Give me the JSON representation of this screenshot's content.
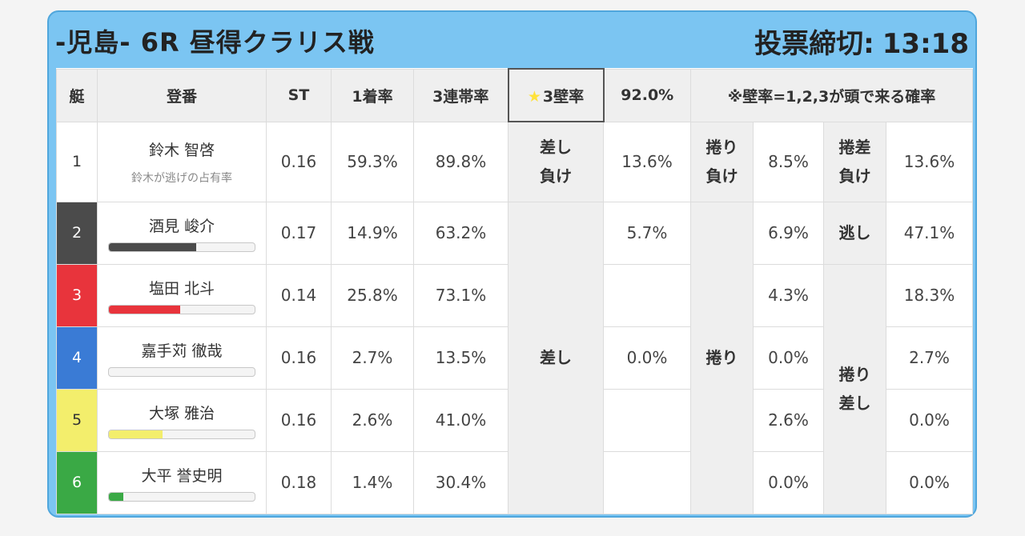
{
  "header": {
    "title": "-児島- 6R 昼得クラリス戦",
    "deadline_label": "投票締切:",
    "deadline_time": "13:18"
  },
  "columns": {
    "boat": "艇",
    "name": "登番",
    "st": "ST",
    "first_rate": "1着率",
    "trio_rate": "3連帯率",
    "wall_star": "★",
    "wall_label": "3壁率",
    "wall_pct": "92.0%",
    "note": "※壁率=1,2,3が頭で来る確率"
  },
  "rows": [
    {
      "boat": "1",
      "name": "鈴木 智啓",
      "sub": "鈴木が逃げの占有率",
      "st": "0.16",
      "first": "59.3%",
      "trio": "89.8%",
      "sashi": "13.6%",
      "makuri": "8.5%",
      "makurizashi": "13.6%",
      "bar_color": "#ffffff",
      "bar_fraction": 0
    },
    {
      "boat": "2",
      "name": "酒見 峻介",
      "st": "0.17",
      "first": "14.9%",
      "trio": "63.2%",
      "sashi": "5.7%",
      "makuri": "6.9%",
      "makurizashi": "47.1%",
      "bar_color": "#4b4b4b",
      "bar_fraction": 0.6
    },
    {
      "boat": "3",
      "name": "塩田 北斗",
      "st": "0.14",
      "first": "25.8%",
      "trio": "73.1%",
      "sashi": "",
      "makuri": "4.3%",
      "makurizashi": "18.3%",
      "bar_color": "#e8343c",
      "bar_fraction": 0.49
    },
    {
      "boat": "4",
      "name": "嘉手苅 徹哉",
      "st": "0.16",
      "first": "2.7%",
      "trio": "13.5%",
      "sashi": "0.0%",
      "makuri": "0.0%",
      "makurizashi": "2.7%",
      "bar_color": "#3a7bd5",
      "bar_fraction": 0
    },
    {
      "boat": "5",
      "name": "大塚 雅治",
      "st": "0.16",
      "first": "2.6%",
      "trio": "41.0%",
      "sashi": "",
      "makuri": "2.6%",
      "makurizashi": "0.0%",
      "bar_color": "#f3ee6c",
      "bar_fraction": 0.37
    },
    {
      "boat": "6",
      "name": "大平 誉史明",
      "st": "0.18",
      "first": "1.4%",
      "trio": "30.4%",
      "sashi": "",
      "makuri": "0.0%",
      "makurizashi": "0.0%",
      "bar_color": "#3aa945",
      "bar_fraction": 0.1
    }
  ],
  "labels": {
    "sashi_make_1": "差し",
    "sashi_make_2": "負け",
    "makuri_make_1": "捲り",
    "makuri_make_2": "負け",
    "makurizashi_make_1": "捲差",
    "makurizashi_make_2": "負け",
    "nige": "逃し",
    "sashi": "差し",
    "makuri": "捲り",
    "makurizashi_1": "捲り",
    "makurizashi_2": "差し"
  }
}
